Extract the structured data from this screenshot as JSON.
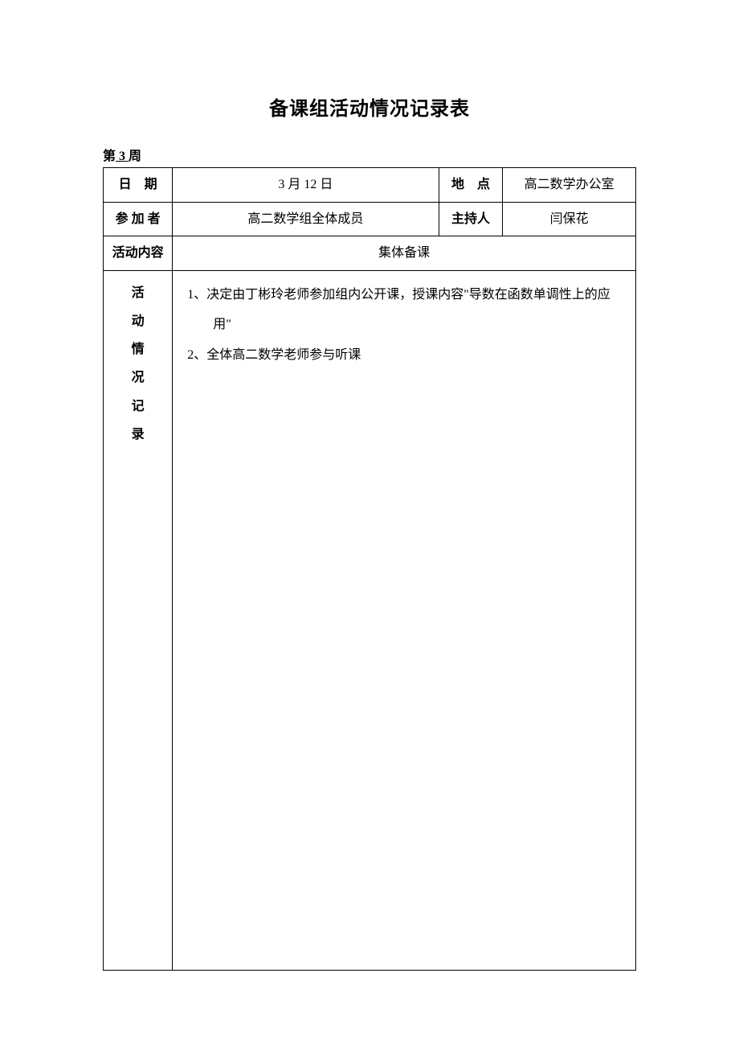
{
  "title": "备课组活动情况记录表",
  "week": {
    "prefix": "第",
    "number": " 3 ",
    "suffix": "周"
  },
  "labels": {
    "date": "日　期",
    "location": "地　点",
    "participants": "参 加 者",
    "host": "主持人",
    "activity_content": "活动内容",
    "activity_record": "活\n动\n情\n况\n记\n录"
  },
  "values": {
    "date": "3 月 12 日",
    "location": "高二数学办公室",
    "participants": "高二数学组全体成员",
    "host": "闫保花",
    "activity_content": "集体备课"
  },
  "record_items": [
    "1、决定由丁彬玲老师参加组内公开课，授课内容\"导数在函数单调性上的应用\"",
    "2、全体高二数学老师参与听课"
  ],
  "colors": {
    "background": "#ffffff",
    "text": "#000000",
    "border": "#000000"
  },
  "table": {
    "col_widths_pct": [
      13,
      50,
      12,
      25
    ],
    "font_size": 16,
    "title_font_size": 24
  }
}
